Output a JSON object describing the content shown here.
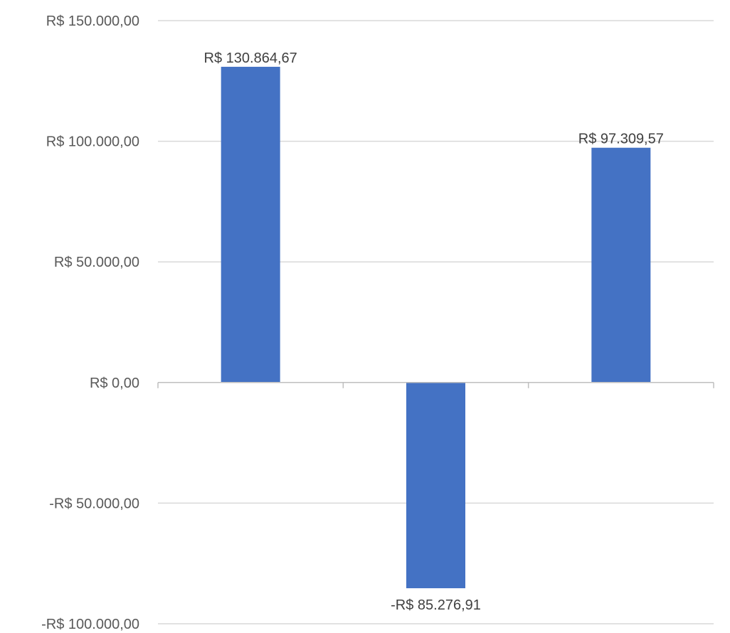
{
  "chart_data": {
    "type": "bar",
    "categories": [
      "",
      "",
      ""
    ],
    "values": [
      130864.67,
      -85276.91,
      97309.57
    ],
    "data_labels": [
      "R$ 130.864,67",
      "-R$ 85.276,91",
      "R$ 97.309,57"
    ],
    "yticks": [
      150000,
      100000,
      50000,
      0,
      -50000,
      -100000
    ],
    "ytick_labels": [
      "R$ 150.000,00",
      "R$ 100.000,00",
      "R$ 50.000,00",
      "R$ 0,00",
      "-R$ 50.000,00",
      "-R$ 100.000,00"
    ],
    "ylim": [
      -100000,
      150000
    ],
    "grid": true,
    "legend": "none",
    "title": "",
    "xlabel": "",
    "ylabel": "",
    "colors": {
      "bar": "#4472C4",
      "grid": "#D9D9D9",
      "axis": "#BFBFBF",
      "tick_text": "#595959",
      "label_text": "#404040"
    }
  }
}
